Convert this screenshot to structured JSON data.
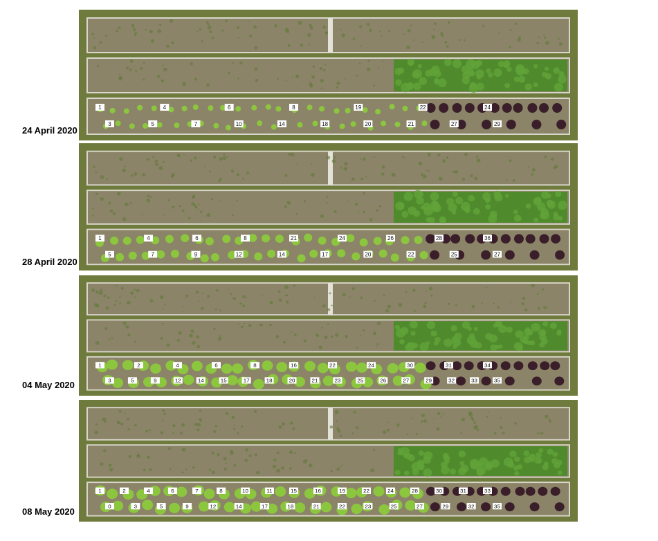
{
  "figure": {
    "panels": [
      {
        "date": "24 April 2020",
        "lettuce_stage": "small",
        "purple_lettuce": true,
        "markers_top": [
          "1",
          "4",
          "6",
          "8",
          "19",
          "22",
          "24"
        ],
        "markers_bottom": [
          "3",
          "5",
          "7",
          "10",
          "14",
          "18",
          "20",
          "21",
          "27",
          "29"
        ]
      },
      {
        "date": "28 April 2020",
        "lettuce_stage": "medium",
        "purple_lettuce": true,
        "markers_top": [
          "1",
          "4",
          "6",
          "8",
          "21",
          "24",
          "26",
          "28",
          "36"
        ],
        "markers_bottom": [
          "5",
          "7",
          "9",
          "12",
          "14",
          "17",
          "20",
          "22",
          "25",
          "27"
        ]
      },
      {
        "date": "04 May 2020",
        "lettuce_stage": "large",
        "purple_lettuce": true,
        "markers_top": [
          "1",
          "2",
          "4",
          "6",
          "8",
          "16",
          "22",
          "24",
          "30",
          "31",
          "34"
        ],
        "markers_bottom": [
          "3",
          "5",
          "9",
          "12",
          "14",
          "15",
          "17",
          "18",
          "20",
          "21",
          "23",
          "25",
          "26",
          "27",
          "29",
          "32",
          "33",
          "35"
        ]
      },
      {
        "date": "08 May 2020",
        "lettuce_stage": "large",
        "purple_lettuce": true,
        "markers_top": [
          "1",
          "2",
          "4",
          "6",
          "7",
          "8",
          "10",
          "11",
          "15",
          "16",
          "19",
          "22",
          "24",
          "28",
          "30",
          "31",
          "33"
        ],
        "markers_bottom": [
          "0",
          "3",
          "5",
          "9",
          "12",
          "14",
          "17",
          "18",
          "21",
          "22",
          "23",
          "25",
          "27",
          "29",
          "32",
          "35"
        ]
      }
    ],
    "colors": {
      "grass": "#6f7a3d",
      "soil": "#8c8468",
      "border": "#d9d7cc",
      "carrot": "#4f8a2c",
      "lettuce": "#8cc63f",
      "purple_lettuce": "#3a1f2a"
    }
  }
}
